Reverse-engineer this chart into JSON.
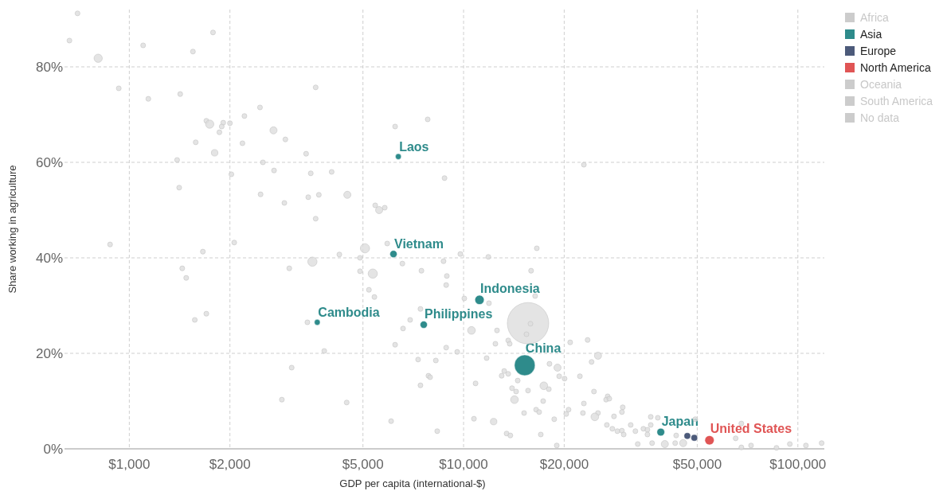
{
  "chart_data": {
    "type": "bubble",
    "xlabel": "GDP per capita (international-$)",
    "ylabel": "Share working in agriculture",
    "log": "x",
    "grid": true,
    "legend": "right",
    "xlim": [
      640,
      120000
    ],
    "ylim": [
      0,
      92
    ],
    "xticks": [
      {
        "value": 1000,
        "label": "$1,000"
      },
      {
        "value": 2000,
        "label": "$2,000"
      },
      {
        "value": 5000,
        "label": "$5,000"
      },
      {
        "value": 10000,
        "label": "$10,000"
      },
      {
        "value": 20000,
        "label": "$20,000"
      },
      {
        "value": 50000,
        "label": "$50,000"
      },
      {
        "value": 100000,
        "label": "$100,000"
      }
    ],
    "yticks": [
      {
        "value": 0,
        "label": "0%"
      },
      {
        "value": 20,
        "label": "20%"
      },
      {
        "value": 40,
        "label": "40%"
      },
      {
        "value": 60,
        "label": "60%"
      },
      {
        "value": 80,
        "label": "80%"
      }
    ],
    "series": [
      {
        "color": "#dddddd",
        "x": [
          15590,
          700,
          662,
          807,
          1100,
          1780,
          1550,
          930,
          1140,
          1420,
          3610,
          2460,
          1700,
          1740,
          1910,
          1890,
          1860,
          2000,
          2210,
          2700,
          2930,
          2180,
          1580,
          1800,
          3380,
          1390,
          2510,
          2710,
          2020,
          3490,
          1410,
          2470,
          3690,
          3430,
          2910,
          3610,
          6240,
          7810,
          4030,
          8770,
          4490,
          5440,
          5590,
          5810,
          22900,
          876,
          1660,
          2060,
          1440,
          1480,
          1700,
          1570,
          3010,
          3530,
          3410,
          3060,
          2860,
          5070,
          5910,
          4250,
          4900,
          6560,
          8710,
          9780,
          11860,
          16560,
          4900,
          5350,
          7480,
          8910,
          8870,
          15920,
          5210,
          5410,
          10050,
          11910,
          16370,
          7430,
          6920,
          6590,
          10560,
          12590,
          15850,
          15420,
          13600,
          12450,
          13740,
          20840,
          6240,
          8870,
          9570,
          3830,
          7310,
          8260,
          11720,
          18070,
          19100,
          13230,
          13000,
          13600,
          19320,
          20050,
          22280,
          7850,
          7940,
          14520,
          7430,
          10860,
          13960,
          14360,
          15590,
          17380,
          17990,
          14200,
          17300,
          4470,
          15170,
          16480,
          16830,
          20610,
          20280,
          10740,
          12300,
          18670,
          6070,
          8340,
          13450,
          13800,
          17020,
          19000,
          23500,
          25240,
          24150,
          24550,
          26980,
          26690,
          27290,
          22900,
          29930,
          29760,
          22750,
          25240,
          24700,
          28180,
          26830,
          27860,
          28840,
          29760,
          30130,
          31620,
          32660,
          34510,
          35480,
          35480,
          36300,
          38110,
          36300,
          33190,
          36640,
          40000,
          42950,
          45390,
          43250,
          49320,
          65160,
          67760,
          67760,
          72440,
          86300,
          94620,
          105700,
          117800
        ],
        "values": [
          26.3,
          91.2,
          85.5,
          81.8,
          84.5,
          87.2,
          83.2,
          75.5,
          73.3,
          74.3,
          75.7,
          71.5,
          68.7,
          68.0,
          68.3,
          67.5,
          66.3,
          68.2,
          69.7,
          66.7,
          64.8,
          64.0,
          64.2,
          62.0,
          61.8,
          60.5,
          60.0,
          58.3,
          57.5,
          57.7,
          54.7,
          53.3,
          53.2,
          52.7,
          51.5,
          48.2,
          67.5,
          69.0,
          58.0,
          56.7,
          53.2,
          51.0,
          50.0,
          50.5,
          59.5,
          42.8,
          41.3,
          43.2,
          37.8,
          35.8,
          28.3,
          27.0,
          37.8,
          39.2,
          26.5,
          17.0,
          10.3,
          42.0,
          43.0,
          40.7,
          40.0,
          38.8,
          39.3,
          40.8,
          40.2,
          42.0,
          37.2,
          36.7,
          37.3,
          36.2,
          34.3,
          37.3,
          33.3,
          31.8,
          31.5,
          30.5,
          32.0,
          29.3,
          27.0,
          25.2,
          24.8,
          24.8,
          26.2,
          24.0,
          22.7,
          22.0,
          22.0,
          22.3,
          21.8,
          21.2,
          20.3,
          20.5,
          18.7,
          18.5,
          19.0,
          17.8,
          17.0,
          16.3,
          15.3,
          15.7,
          15.2,
          14.7,
          15.2,
          15.3,
          15.0,
          14.3,
          13.3,
          13.7,
          12.7,
          12.0,
          12.2,
          13.2,
          12.5,
          10.3,
          10.0,
          9.7,
          7.5,
          8.2,
          7.7,
          8.2,
          7.3,
          6.3,
          5.7,
          6.2,
          5.8,
          3.7,
          3.2,
          2.8,
          3.0,
          0.7,
          22.8,
          19.5,
          18.2,
          12.0,
          11.0,
          10.3,
          10.5,
          9.5,
          8.7,
          7.7,
          7.5,
          7.5,
          6.7,
          6.8,
          5.0,
          4.2,
          3.7,
          3.8,
          3.0,
          5.0,
          3.7,
          4.2,
          4.0,
          3.0,
          6.7,
          6.5,
          5.0,
          1.0,
          1.2,
          1.0,
          1.2,
          1.2,
          2.8,
          6.2,
          2.2,
          5.3,
          0.3,
          0.7,
          0.2,
          1.0,
          0.7,
          1.2
        ],
        "sizes": [
          1,
          0.014,
          0.014,
          0.04,
          0.014,
          0.014,
          0.014,
          0.014,
          0.014,
          0.014,
          0.014,
          0.014,
          0.014,
          0.04,
          0.014,
          0.014,
          0.014,
          0.014,
          0.014,
          0.03,
          0.014,
          0.014,
          0.014,
          0.025,
          0.014,
          0.014,
          0.014,
          0.014,
          0.014,
          0.014,
          0.014,
          0.014,
          0.014,
          0.014,
          0.014,
          0.014,
          0.014,
          0.014,
          0.014,
          0.014,
          0.03,
          0.014,
          0.03,
          0.014,
          0.014,
          0.014,
          0.014,
          0.014,
          0.014,
          0.014,
          0.014,
          0.014,
          0.014,
          0.05,
          0.014,
          0.014,
          0.014,
          0.05,
          0.014,
          0.014,
          0.014,
          0.014,
          0.014,
          0.014,
          0.014,
          0.014,
          0.014,
          0.05,
          0.014,
          0.014,
          0.014,
          0.014,
          0.014,
          0.014,
          0.014,
          0.014,
          0.014,
          0.014,
          0.014,
          0.014,
          0.035,
          0.014,
          0.014,
          0.014,
          0.014,
          0.014,
          0.014,
          0.014,
          0.014,
          0.014,
          0.014,
          0.014,
          0.014,
          0.014,
          0.014,
          0.014,
          0.03,
          0.014,
          0.014,
          0.014,
          0.014,
          0.014,
          0.014,
          0.014,
          0.014,
          0.014,
          0.014,
          0.014,
          0.014,
          0.014,
          0.014,
          0.035,
          0.014,
          0.035,
          0.014,
          0.014,
          0.014,
          0.014,
          0.014,
          0.014,
          0.014,
          0.014,
          0.025,
          0.014,
          0.014,
          0.014,
          0.014,
          0.014,
          0.014,
          0.014,
          0.014,
          0.03,
          0.014,
          0.014,
          0.014,
          0.014,
          0.014,
          0.014,
          0.014,
          0.014,
          0.014,
          0.014,
          0.035,
          0.014,
          0.014,
          0.014,
          0.014,
          0.014,
          0.014,
          0.014,
          0.014,
          0.014,
          0.014,
          0.014,
          0.014,
          0.014,
          0.014,
          0.014,
          0.014,
          0.03,
          0.014,
          0.03,
          0.014,
          0.014,
          0.014,
          0.014,
          0.014,
          0.014,
          0.014,
          0.014,
          0.014,
          0.014
        ]
      },
      {
        "name": "Africa",
        "color": "#cccccc"
      },
      {
        "name": "Asia",
        "color": "#2e8b8b",
        "x": [
          6380,
          6170,
          3650,
          7600,
          11160,
          15240,
          38900
        ],
        "values": [
          61.2,
          40.8,
          26.5,
          26.0,
          31.2,
          17.5,
          3.5
        ],
        "sizes": [
          0.02,
          0.03,
          0.02,
          0.03,
          0.05,
          0.25,
          0.035
        ]
      },
      {
        "name": "Europe",
        "color": "#4c5a7a",
        "x": [
          46700,
          49000
        ],
        "values": [
          2.7,
          2.3
        ],
        "sizes": [
          0.025,
          0.025
        ]
      },
      {
        "name": "North America",
        "color": "#e05555",
        "x": [
          54400
        ],
        "values": [
          1.8
        ],
        "sizes": [
          0.05
        ]
      },
      {
        "name": "Oceania",
        "color": "#cccccc"
      },
      {
        "name": "South America",
        "color": "#cccccc"
      },
      {
        "name": "No data",
        "color": "#cccccc"
      }
    ],
    "annotations": [
      {
        "text": "Laos",
        "x": 6380,
        "y": 61.2
      },
      {
        "text": "Vietnam",
        "x": 6170,
        "y": 40.8
      },
      {
        "text": "Cambodia",
        "x": 3650,
        "y": 26.5
      },
      {
        "text": "Philippines",
        "x": 7600,
        "y": 26.0
      },
      {
        "text": "Indonesia",
        "x": 11160,
        "y": 31.2
      },
      {
        "text": "China",
        "x": 15240,
        "y": 17.5
      },
      {
        "text": "Japan",
        "x": 38900,
        "y": 3.5
      },
      {
        "text": "United States",
        "x": 54400,
        "y": 1.8
      }
    ]
  }
}
